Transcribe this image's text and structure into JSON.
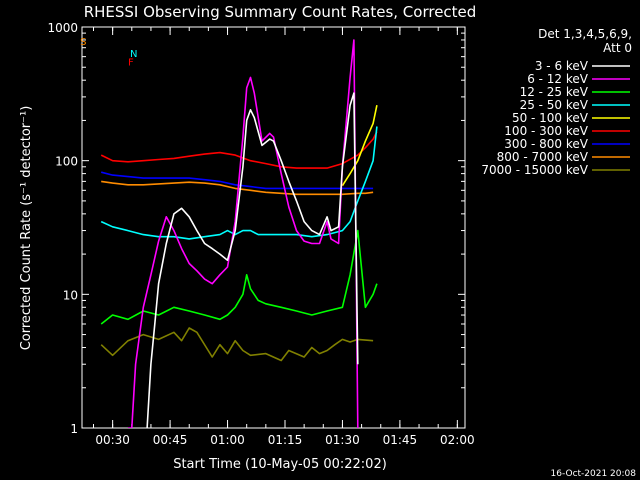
{
  "chart_data": {
    "type": "line",
    "title": "RHESSI Observing Summary Count Rates, Corrected",
    "xlabel": "Start Time (10-May-05 00:22:02)",
    "ylabel": "Corrected Count Rate (s⁻¹ detector⁻¹)",
    "y_scale": "log",
    "ylim": [
      1,
      1000
    ],
    "y_ticks": [
      1,
      10,
      100,
      1000
    ],
    "x_unit": "minutes after 00:22:02",
    "xlim": [
      0,
      100
    ],
    "x_ticks": [
      {
        "label": "00:30",
        "t": 8
      },
      {
        "label": "00:45",
        "t": 23
      },
      {
        "label": "01:00",
        "t": 38
      },
      {
        "label": "01:15",
        "t": 53
      },
      {
        "label": "01:30",
        "t": 68
      },
      {
        "label": "01:45",
        "t": 83
      },
      {
        "label": "02:00",
        "t": 98
      }
    ],
    "legend_header": [
      "Det 1,3,4,5,6,9,",
      "Att 0"
    ],
    "legend_position": "right",
    "footer": "16-Oct-2021 20:08",
    "series": [
      {
        "name": "3 - 6 keV",
        "color": "#ffffff",
        "points": [
          [
            17,
            1
          ],
          [
            18,
            3
          ],
          [
            19,
            6
          ],
          [
            20,
            12
          ],
          [
            22,
            24
          ],
          [
            24,
            40
          ],
          [
            26,
            44
          ],
          [
            28,
            38
          ],
          [
            30,
            30
          ],
          [
            32,
            24
          ],
          [
            34,
            22
          ],
          [
            36,
            20
          ],
          [
            38,
            18
          ],
          [
            40,
            30
          ],
          [
            42,
            90
          ],
          [
            43,
            200
          ],
          [
            44,
            240
          ],
          [
            45,
            210
          ],
          [
            47,
            130
          ],
          [
            49,
            145
          ],
          [
            50,
            140
          ],
          [
            52,
            100
          ],
          [
            54,
            70
          ],
          [
            56,
            50
          ],
          [
            58,
            35
          ],
          [
            60,
            30
          ],
          [
            62,
            28
          ],
          [
            64,
            38
          ],
          [
            65,
            30
          ],
          [
            67,
            32
          ],
          [
            68,
            90
          ],
          [
            70,
            260
          ],
          [
            71,
            320
          ],
          [
            72,
            3
          ]
        ]
      },
      {
        "name": "6 - 12 keV",
        "color": "#ff00ff",
        "points": [
          [
            12,
            1
          ],
          [
            13,
            1
          ],
          [
            14,
            3
          ],
          [
            16,
            8
          ],
          [
            18,
            14
          ],
          [
            20,
            25
          ],
          [
            22,
            38
          ],
          [
            24,
            30
          ],
          [
            26,
            22
          ],
          [
            28,
            17
          ],
          [
            30,
            15
          ],
          [
            32,
            13
          ],
          [
            34,
            12
          ],
          [
            36,
            14
          ],
          [
            38,
            16
          ],
          [
            40,
            35
          ],
          [
            42,
            150
          ],
          [
            43,
            350
          ],
          [
            44,
            420
          ],
          [
            45,
            320
          ],
          [
            47,
            140
          ],
          [
            49,
            160
          ],
          [
            50,
            150
          ],
          [
            52,
            80
          ],
          [
            54,
            45
          ],
          [
            56,
            30
          ],
          [
            58,
            25
          ],
          [
            60,
            24
          ],
          [
            62,
            24
          ],
          [
            64,
            35
          ],
          [
            65,
            26
          ],
          [
            67,
            24
          ],
          [
            68,
            90
          ],
          [
            70,
            420
          ],
          [
            71,
            800
          ],
          [
            72,
            1
          ]
        ]
      },
      {
        "name": "12 - 25 keV",
        "color": "#00ff00",
        "points": [
          [
            5,
            6
          ],
          [
            8,
            7
          ],
          [
            12,
            6.5
          ],
          [
            16,
            7.5
          ],
          [
            20,
            7
          ],
          [
            24,
            8
          ],
          [
            28,
            7.5
          ],
          [
            32,
            7
          ],
          [
            36,
            6.5
          ],
          [
            38,
            7
          ],
          [
            40,
            8
          ],
          [
            42,
            10
          ],
          [
            43,
            14
          ],
          [
            44,
            11
          ],
          [
            46,
            9
          ],
          [
            48,
            8.5
          ],
          [
            52,
            8
          ],
          [
            56,
            7.5
          ],
          [
            60,
            7
          ],
          [
            64,
            7.5
          ],
          [
            68,
            8
          ],
          [
            70,
            14
          ],
          [
            72,
            30
          ],
          [
            74,
            8
          ],
          [
            76,
            10
          ],
          [
            77,
            12
          ]
        ]
      },
      {
        "name": "25 - 50 keV",
        "color": "#00ffff",
        "points": [
          [
            5,
            35
          ],
          [
            8,
            32
          ],
          [
            12,
            30
          ],
          [
            16,
            28
          ],
          [
            20,
            27
          ],
          [
            24,
            27
          ],
          [
            28,
            26
          ],
          [
            32,
            27
          ],
          [
            36,
            28
          ],
          [
            38,
            30
          ],
          [
            40,
            28
          ],
          [
            42,
            30
          ],
          [
            44,
            30
          ],
          [
            46,
            28
          ],
          [
            48,
            28
          ],
          [
            52,
            28
          ],
          [
            56,
            28
          ],
          [
            60,
            27
          ],
          [
            64,
            28
          ],
          [
            68,
            30
          ],
          [
            70,
            35
          ],
          [
            72,
            50
          ],
          [
            74,
            70
          ],
          [
            76,
            100
          ],
          [
            77,
            180
          ]
        ]
      },
      {
        "name": "50 - 100 keV",
        "color": "#ffff00",
        "points": [
          [
            68,
            65
          ],
          [
            70,
            80
          ],
          [
            72,
            100
          ],
          [
            74,
            140
          ],
          [
            76,
            190
          ],
          [
            77,
            260
          ]
        ]
      },
      {
        "name": "100 - 300 keV",
        "color": "#ff0000",
        "points": [
          [
            5,
            110
          ],
          [
            8,
            100
          ],
          [
            12,
            98
          ],
          [
            16,
            100
          ],
          [
            20,
            102
          ],
          [
            24,
            104
          ],
          [
            28,
            108
          ],
          [
            32,
            112
          ],
          [
            36,
            115
          ],
          [
            40,
            110
          ],
          [
            44,
            100
          ],
          [
            48,
            95
          ],
          [
            52,
            90
          ],
          [
            56,
            88
          ],
          [
            60,
            88
          ],
          [
            64,
            88
          ],
          [
            68,
            95
          ],
          [
            72,
            110
          ],
          [
            74,
            125
          ],
          [
            76,
            145
          ],
          [
            77,
            165
          ]
        ]
      },
      {
        "name": "300 - 800 keV",
        "color": "#0000ff",
        "points": [
          [
            5,
            82
          ],
          [
            8,
            78
          ],
          [
            12,
            76
          ],
          [
            16,
            74
          ],
          [
            20,
            74
          ],
          [
            24,
            74
          ],
          [
            28,
            74
          ],
          [
            32,
            72
          ],
          [
            36,
            70
          ],
          [
            40,
            66
          ],
          [
            44,
            64
          ],
          [
            48,
            62
          ],
          [
            52,
            62
          ],
          [
            56,
            62
          ],
          [
            60,
            62
          ],
          [
            64,
            62
          ],
          [
            68,
            62
          ],
          [
            72,
            62
          ],
          [
            74,
            62
          ],
          [
            76,
            62
          ]
        ]
      },
      {
        "name": "800 - 7000 keV",
        "color": "#ff8c00",
        "points": [
          [
            5,
            70
          ],
          [
            8,
            68
          ],
          [
            12,
            66
          ],
          [
            16,
            66
          ],
          [
            20,
            67
          ],
          [
            24,
            68
          ],
          [
            28,
            69
          ],
          [
            32,
            68
          ],
          [
            36,
            66
          ],
          [
            40,
            62
          ],
          [
            44,
            60
          ],
          [
            48,
            58
          ],
          [
            52,
            57
          ],
          [
            56,
            56
          ],
          [
            60,
            56
          ],
          [
            64,
            56
          ],
          [
            68,
            56
          ],
          [
            72,
            57
          ],
          [
            74,
            57
          ],
          [
            76,
            58
          ]
        ]
      },
      {
        "name": "7000 - 15000 keV",
        "color": "#808000",
        "points": [
          [
            5,
            4.2
          ],
          [
            8,
            3.5
          ],
          [
            12,
            4.5
          ],
          [
            16,
            5
          ],
          [
            20,
            4.6
          ],
          [
            24,
            5.2
          ],
          [
            26,
            4.5
          ],
          [
            28,
            5.6
          ],
          [
            30,
            5.2
          ],
          [
            34,
            3.4
          ],
          [
            36,
            4.2
          ],
          [
            38,
            3.6
          ],
          [
            40,
            4.5
          ],
          [
            42,
            3.8
          ],
          [
            44,
            3.5
          ],
          [
            48,
            3.6
          ],
          [
            52,
            3.2
          ],
          [
            54,
            3.8
          ],
          [
            58,
            3.4
          ],
          [
            60,
            4.0
          ],
          [
            62,
            3.6
          ],
          [
            64,
            3.8
          ],
          [
            66,
            4.2
          ],
          [
            68,
            4.6
          ],
          [
            70,
            4.4
          ],
          [
            72,
            4.6
          ],
          [
            76,
            4.5
          ]
        ]
      }
    ],
    "markers": [
      {
        "label": "S",
        "t": -1,
        "value": 800,
        "color": "#ff8c00"
      },
      {
        "label": "N",
        "t": 12,
        "value": 650,
        "color": "#00ffff"
      },
      {
        "label": "F",
        "t": 11.5,
        "value": 560,
        "color": "#ff0000"
      }
    ]
  }
}
